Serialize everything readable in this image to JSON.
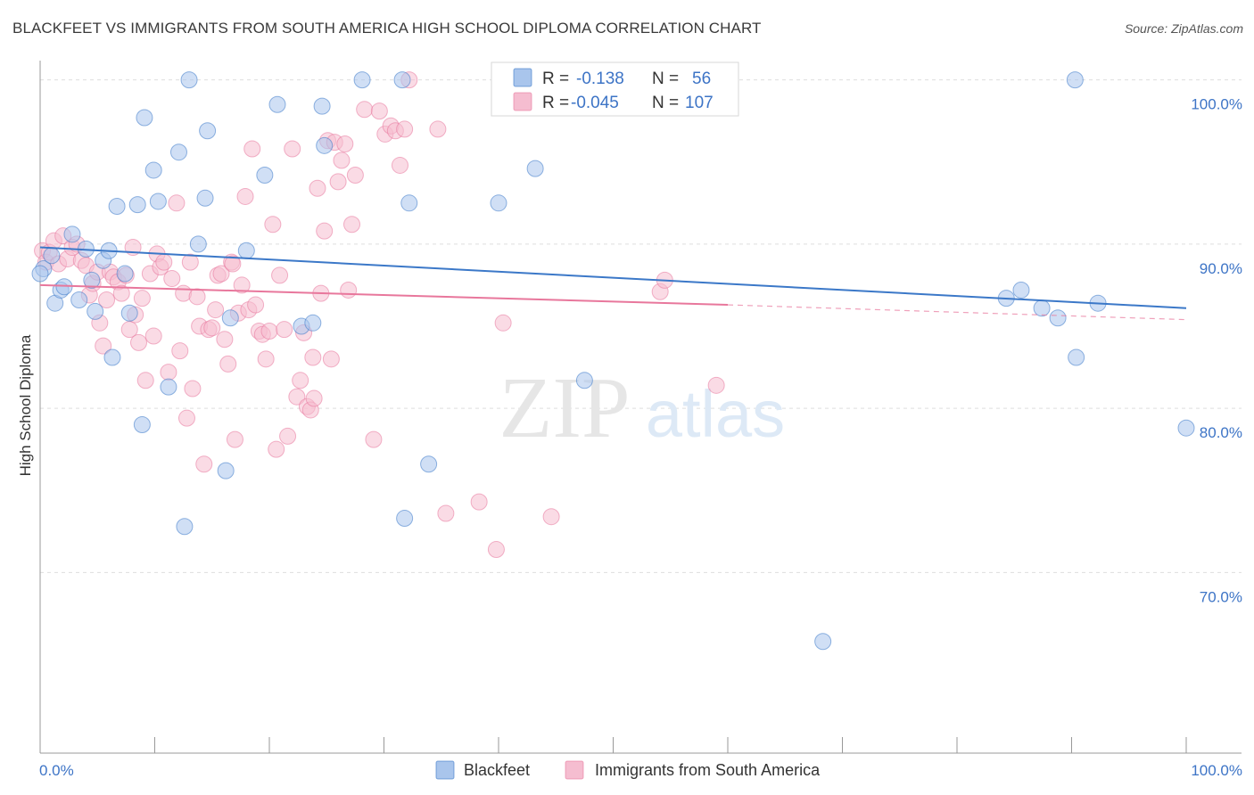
{
  "title": "BLACKFEET VS IMMIGRANTS FROM SOUTH AMERICA HIGH SCHOOL DIPLOMA CORRELATION CHART",
  "source": "Source: ZipAtlas.com",
  "watermark": {
    "zip": "ZIP",
    "atlas": "atlas"
  },
  "colors": {
    "blue": "#3b78c8",
    "pink": "#e8779c",
    "blue_fill": "#a9c5ec",
    "pink_fill": "#f5bdd0",
    "axis_text": "#3d74c6"
  },
  "chart_data": {
    "type": "scatter",
    "ylabel": "High School Diploma",
    "xlim": [
      0,
      100
    ],
    "ylim": [
      59,
      101.5
    ],
    "x_tick_labels": [
      {
        "value": 0,
        "label": "0.0%"
      },
      {
        "value": 100,
        "label": "100.0%"
      }
    ],
    "y_tick_labels": [
      {
        "value": 100,
        "label": "100.0%"
      },
      {
        "value": 90,
        "label": "90.0%"
      },
      {
        "value": 80,
        "label": "80.0%"
      },
      {
        "value": 70,
        "label": "70.0%"
      }
    ],
    "grid": true,
    "legend_top": {
      "rows": [
        {
          "r_label": "R =",
          "r_value": "-0.138",
          "n_label": "N =",
          "n_value": "56"
        },
        {
          "r_label": "R =",
          "r_value": "-0.045",
          "n_label": "N =",
          "n_value": "107"
        }
      ]
    },
    "series": [
      {
        "name": "Blackfeet",
        "color": "#3b78c8",
        "trend": {
          "x": [
            0,
            100
          ],
          "y": [
            89.8,
            86.1
          ]
        },
        "points": [
          [
            0.3,
            88.5
          ],
          [
            1.0,
            89.3
          ],
          [
            1.3,
            86.4
          ],
          [
            1.8,
            87.2
          ],
          [
            2.1,
            87.4
          ],
          [
            2.8,
            90.6
          ],
          [
            3.4,
            86.6
          ],
          [
            4.0,
            89.7
          ],
          [
            4.5,
            87.8
          ],
          [
            4.8,
            85.9
          ],
          [
            5.5,
            89.0
          ],
          [
            6.0,
            89.6
          ],
          [
            6.3,
            83.1
          ],
          [
            6.7,
            92.3
          ],
          [
            7.4,
            88.2
          ],
          [
            7.8,
            85.8
          ],
          [
            8.5,
            92.4
          ],
          [
            8.9,
            79.0
          ],
          [
            9.1,
            97.7
          ],
          [
            9.9,
            94.5
          ],
          [
            10.3,
            92.6
          ],
          [
            11.2,
            81.3
          ],
          [
            12.1,
            95.6
          ],
          [
            12.6,
            72.8
          ],
          [
            13.0,
            100.0
          ],
          [
            13.8,
            90.0
          ],
          [
            14.4,
            92.8
          ],
          [
            14.6,
            96.9
          ],
          [
            16.2,
            76.2
          ],
          [
            16.6,
            85.5
          ],
          [
            18.0,
            89.6
          ],
          [
            19.6,
            94.2
          ],
          [
            20.7,
            98.5
          ],
          [
            22.8,
            85.0
          ],
          [
            23.8,
            85.2
          ],
          [
            24.6,
            98.4
          ],
          [
            24.8,
            96.0
          ],
          [
            28.1,
            100.0
          ],
          [
            31.6,
            100.0
          ],
          [
            31.8,
            73.3
          ],
          [
            32.2,
            92.5
          ],
          [
            33.9,
            76.6
          ],
          [
            40.0,
            92.5
          ],
          [
            43.2,
            94.6
          ],
          [
            47.2,
            100.0
          ],
          [
            47.5,
            81.7
          ],
          [
            68.3,
            65.8
          ],
          [
            88.8,
            85.5
          ],
          [
            84.3,
            86.7
          ],
          [
            85.6,
            87.2
          ],
          [
            87.4,
            86.1
          ],
          [
            90.3,
            100.0
          ],
          [
            90.4,
            83.1
          ],
          [
            92.3,
            86.4
          ],
          [
            100.0,
            78.8
          ],
          [
            0.0,
            88.2
          ]
        ]
      },
      {
        "name": "Immigrants from South America",
        "color": "#e8779c",
        "trend": {
          "x": [
            0,
            60
          ],
          "y": [
            87.5,
            86.3
          ]
        },
        "trend_dashed": {
          "x": [
            60,
            100
          ],
          "y": [
            86.3,
            85.4
          ]
        },
        "points": [
          [
            0.2,
            89.6
          ],
          [
            0.5,
            88.9
          ],
          [
            0.8,
            89.5
          ],
          [
            1.2,
            90.2
          ],
          [
            1.6,
            88.8
          ],
          [
            2.0,
            90.5
          ],
          [
            2.4,
            89.1
          ],
          [
            2.8,
            89.8
          ],
          [
            3.2,
            90.0
          ],
          [
            3.6,
            89.0
          ],
          [
            4.0,
            88.7
          ],
          [
            4.3,
            86.9
          ],
          [
            4.6,
            87.6
          ],
          [
            5.0,
            88.3
          ],
          [
            5.2,
            85.2
          ],
          [
            5.5,
            83.8
          ],
          [
            5.8,
            86.6
          ],
          [
            6.1,
            88.3
          ],
          [
            6.4,
            88.0
          ],
          [
            6.8,
            87.7
          ],
          [
            7.1,
            87.0
          ],
          [
            7.5,
            88.1
          ],
          [
            7.8,
            84.8
          ],
          [
            8.1,
            89.8
          ],
          [
            8.3,
            85.7
          ],
          [
            8.6,
            84.0
          ],
          [
            8.9,
            86.7
          ],
          [
            9.2,
            81.7
          ],
          [
            9.6,
            88.2
          ],
          [
            9.9,
            84.4
          ],
          [
            10.2,
            89.4
          ],
          [
            10.5,
            88.6
          ],
          [
            10.8,
            88.9
          ],
          [
            11.2,
            82.2
          ],
          [
            11.5,
            87.9
          ],
          [
            11.9,
            92.5
          ],
          [
            12.2,
            83.5
          ],
          [
            12.5,
            87.0
          ],
          [
            12.8,
            79.4
          ],
          [
            13.1,
            88.9
          ],
          [
            13.3,
            81.2
          ],
          [
            13.7,
            86.8
          ],
          [
            13.9,
            85.0
          ],
          [
            14.3,
            76.6
          ],
          [
            14.7,
            84.8
          ],
          [
            15.0,
            84.9
          ],
          [
            15.3,
            86.0
          ],
          [
            15.5,
            88.1
          ],
          [
            15.8,
            88.2
          ],
          [
            16.1,
            84.2
          ],
          [
            16.4,
            82.7
          ],
          [
            16.7,
            88.9
          ],
          [
            17.0,
            78.1
          ],
          [
            17.3,
            85.8
          ],
          [
            17.6,
            87.5
          ],
          [
            17.9,
            92.9
          ],
          [
            18.2,
            86.0
          ],
          [
            18.5,
            95.8
          ],
          [
            18.8,
            86.3
          ],
          [
            19.1,
            84.7
          ],
          [
            19.4,
            84.5
          ],
          [
            19.7,
            83.0
          ],
          [
            20.0,
            84.7
          ],
          [
            20.3,
            91.2
          ],
          [
            20.6,
            77.5
          ],
          [
            20.9,
            88.1
          ],
          [
            21.3,
            84.8
          ],
          [
            21.6,
            78.3
          ],
          [
            22.0,
            95.8
          ],
          [
            22.4,
            80.7
          ],
          [
            22.7,
            81.7
          ],
          [
            23.0,
            84.6
          ],
          [
            23.3,
            80.1
          ],
          [
            23.6,
            79.9
          ],
          [
            23.9,
            80.6
          ],
          [
            24.2,
            93.4
          ],
          [
            24.5,
            87.0
          ],
          [
            24.8,
            90.8
          ],
          [
            25.1,
            96.3
          ],
          [
            25.4,
            83.0
          ],
          [
            25.7,
            96.2
          ],
          [
            26.0,
            93.8
          ],
          [
            26.3,
            95.1
          ],
          [
            26.6,
            96.1
          ],
          [
            26.9,
            87.2
          ],
          [
            27.2,
            91.2
          ],
          [
            27.5,
            94.2
          ],
          [
            28.3,
            98.2
          ],
          [
            29.1,
            78.1
          ],
          [
            29.6,
            98.1
          ],
          [
            30.1,
            96.7
          ],
          [
            30.6,
            97.2
          ],
          [
            31.0,
            96.9
          ],
          [
            31.4,
            94.8
          ],
          [
            31.8,
            97.0
          ],
          [
            32.2,
            100.0
          ],
          [
            34.7,
            97.0
          ],
          [
            35.4,
            73.6
          ],
          [
            38.3,
            74.3
          ],
          [
            39.8,
            71.4
          ],
          [
            40.4,
            85.2
          ],
          [
            44.6,
            73.4
          ],
          [
            54.1,
            87.1
          ],
          [
            54.5,
            87.8
          ],
          [
            59.0,
            81.4
          ],
          [
            23.8,
            83.1
          ],
          [
            16.8,
            88.8
          ]
        ]
      }
    ]
  },
  "bottom_legend": [
    {
      "label": "Blackfeet"
    },
    {
      "label": "Immigrants from South America"
    }
  ]
}
